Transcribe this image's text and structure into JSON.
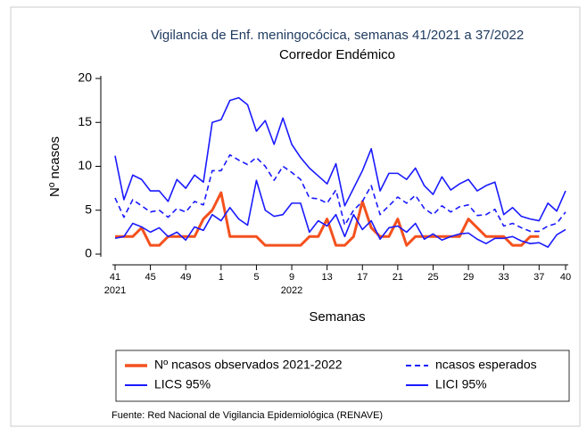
{
  "chart_data": {
    "type": "line",
    "title": "Vigilancia de Enf. meningocócica, semanas 41/2021 a 37/2022",
    "subtitle": "Corredor Endémico",
    "x_label": "Semanas",
    "y_label": "Nº ncasos",
    "source": "Fuente: Red Nacional de Vigilancia Epidemiológica (RENAVE)",
    "categories": [
      "41",
      null,
      null,
      null,
      "45",
      null,
      null,
      null,
      "49",
      null,
      null,
      null,
      "1",
      null,
      null,
      null,
      "5",
      null,
      null,
      null,
      "9",
      null,
      null,
      null,
      "13",
      null,
      null,
      null,
      "17",
      null,
      null,
      null,
      "21",
      null,
      null,
      null,
      "25",
      null,
      null,
      null,
      "29",
      null,
      null,
      null,
      "33",
      null,
      null,
      null,
      "37",
      null,
      null,
      "40"
    ],
    "year_labels": [
      "2021",
      null,
      null,
      null,
      null,
      null,
      null,
      null,
      null,
      null,
      null,
      null,
      null,
      null,
      null,
      null,
      null,
      null,
      null,
      null,
      "2022",
      null,
      null,
      null,
      null,
      null,
      null,
      null,
      null,
      null,
      null,
      null,
      null,
      null,
      null,
      null,
      null,
      null,
      null,
      null,
      null,
      null,
      null,
      null,
      null,
      null,
      null,
      null,
      null,
      null,
      null,
      null
    ],
    "ylim": [
      0,
      20
    ],
    "yticks": [
      0,
      5,
      10,
      15,
      20
    ],
    "series": [
      {
        "name": "Nº ncasos observados 2021-2022",
        "color": "#f4511e",
        "dash": false,
        "width": 3,
        "values": [
          2,
          2,
          2,
          3,
          1,
          1,
          2,
          2,
          2,
          2,
          4,
          5,
          7,
          2,
          2,
          2,
          2,
          1,
          1,
          1,
          1,
          1,
          2,
          2,
          4,
          1,
          1,
          2,
          6,
          3,
          2,
          2,
          4,
          1,
          2,
          2,
          2,
          2,
          2,
          2,
          4,
          3,
          2,
          2,
          2,
          1,
          1,
          2,
          2,
          null,
          null,
          null
        ]
      },
      {
        "name": "ncasos esperados",
        "color": "#1a1aff",
        "dash": true,
        "width": 1.6,
        "values": [
          6.4,
          4.2,
          6.2,
          5.5,
          4.8,
          5,
          4.2,
          5.2,
          4.8,
          6,
          5.6,
          9.5,
          9.5,
          11.3,
          10.7,
          10.2,
          11,
          10,
          8.4,
          10,
          9.3,
          8.5,
          6.4,
          6.3,
          5.8,
          7.3,
          3.3,
          5,
          6,
          7.8,
          4.5,
          5.5,
          6.5,
          5.8,
          6.7,
          5.2,
          4.5,
          5.5,
          4.8,
          5.4,
          5.6,
          4.4,
          4.5,
          5.1,
          3.2,
          3.5,
          3,
          2.6,
          2.6,
          3.2,
          3.5,
          4.8
        ]
      },
      {
        "name": "LICS 95%",
        "color": "#1a1aff",
        "dash": false,
        "width": 1.6,
        "values": [
          11.2,
          6.2,
          9,
          8.5,
          7.2,
          7.2,
          6,
          8.5,
          7.5,
          9,
          8.2,
          15,
          15.3,
          17.5,
          17.8,
          17,
          14,
          15.2,
          12.5,
          15.5,
          12.5,
          11,
          9.8,
          8.9,
          8,
          10.3,
          5.5,
          7.5,
          9.5,
          12,
          7.2,
          9.2,
          9.2,
          8.5,
          9.8,
          7.8,
          6.8,
          8.8,
          7.3,
          8,
          8.5,
          7.2,
          7.8,
          8.2,
          4.5,
          5.3,
          4.3,
          4,
          3.8,
          5.8,
          4.9,
          7.2
        ]
      },
      {
        "name": "LICI 95%",
        "color": "#1a1aff",
        "dash": false,
        "width": 1.6,
        "values": [
          1.8,
          2,
          3.5,
          3.1,
          2.5,
          3,
          2,
          2.5,
          1.6,
          3.1,
          2.7,
          4.5,
          3.8,
          5.3,
          4,
          3.3,
          8.4,
          5,
          4.3,
          4.5,
          5.8,
          5.8,
          2.5,
          3.8,
          3.2,
          4.5,
          2,
          4.5,
          2.8,
          3.8,
          1.7,
          3,
          3.2,
          2.5,
          3.5,
          1.7,
          2.3,
          1.6,
          2,
          2.3,
          2.4,
          1.7,
          1.2,
          1.8,
          1.8,
          2,
          1.5,
          1.2,
          1.3,
          0.8,
          2.2,
          2.8
        ]
      }
    ]
  }
}
